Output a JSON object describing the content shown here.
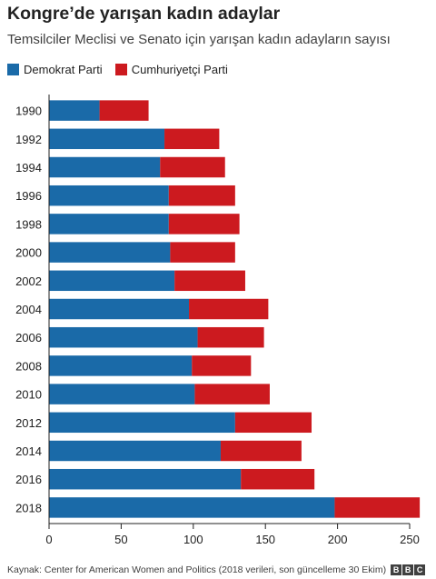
{
  "title": "Kongre’de yarışan kadın adaylar",
  "subtitle": "Temsilciler Meclisi ve Senato için yarışan kadın adayların sayısı",
  "footer": {
    "source": "Kaynak: Center for American Women and Politics (2018 verileri, son güncelleme 30 Ekim)",
    "logo_letters": [
      "B",
      "B",
      "C"
    ]
  },
  "colors": {
    "democrat": "#1a6aa8",
    "republican": "#cc1a1f",
    "axis": "#222222"
  },
  "chart_data": {
    "type": "bar",
    "orientation": "horizontal",
    "stacked": true,
    "categories": [
      "1990",
      "1992",
      "1994",
      "1996",
      "1998",
      "2000",
      "2002",
      "2004",
      "2006",
      "2008",
      "2010",
      "2012",
      "2014",
      "2016",
      "2018"
    ],
    "series": [
      {
        "name": "Demokrat Parti",
        "values": [
          35,
          80,
          77,
          83,
          83,
          84,
          87,
          97,
          103,
          99,
          101,
          129,
          119,
          133,
          198
        ]
      },
      {
        "name": "Cumhuriyetçi Parti",
        "values": [
          34,
          38,
          45,
          46,
          49,
          45,
          49,
          55,
          46,
          41,
          52,
          53,
          56,
          51,
          59
        ]
      }
    ],
    "xlim": [
      0,
      250
    ],
    "xticks": [
      0,
      50,
      100,
      150,
      200,
      250
    ],
    "legend": "top-left",
    "grid": false
  }
}
